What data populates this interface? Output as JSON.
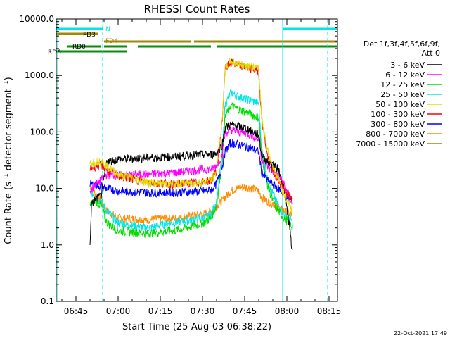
{
  "chart_data": {
    "type": "line",
    "title": "RHESSI Count Rates",
    "xlabel": "Start Time (25-Aug-03 06:38:22)",
    "ylabel": "Count Rate (s⁻¹ detector segment⁻¹)",
    "footer": "22-Oct-2021 17:49",
    "y_scale": "log",
    "ylim": [
      0.1,
      10000
    ],
    "xlim": [
      "06:38",
      "08:18"
    ],
    "x_ticks": [
      "06:45",
      "07:00",
      "07:15",
      "07:30",
      "07:45",
      "08:00",
      "08:15"
    ],
    "y_ticks": [
      "0.1",
      "1.0",
      "10.0",
      "100.0",
      "1000.0",
      "10000.0"
    ],
    "legend": {
      "title_lines": [
        "Det 1f,3f,4f,5f,6f,9f,",
        "Att 0"
      ],
      "placement": "right"
    },
    "vlines": [
      {
        "x": "06:38:30",
        "color": "#00e6e6"
      },
      {
        "x": "06:54:30",
        "color": "#00e6e6",
        "dashed": true
      },
      {
        "x": "07:58:30",
        "color": "#00e6e6"
      },
      {
        "x": "08:14:30",
        "color": "#00e6e6",
        "dashed": true
      }
    ],
    "flag_bars": [
      {
        "label": "N",
        "color": "#00e6e6",
        "segments": [
          [
            "06:38",
            "06:54:30"
          ],
          [
            "07:58:30",
            "08:18"
          ]
        ]
      },
      {
        "label": "FD3",
        "color": "#a08a00",
        "segments": [
          [
            "06:38",
            "06:53"
          ]
        ]
      },
      {
        "label": "FD4",
        "color": "#a08a00",
        "segments": [
          [
            "06:55",
            "07:26"
          ],
          [
            "07:27",
            "08:18"
          ]
        ]
      },
      {
        "label": "RD0",
        "color": "#0a8c0a",
        "segments": [
          [
            "06:42",
            "06:54"
          ],
          [
            "06:55",
            "07:03"
          ],
          [
            "07:07",
            "07:33"
          ],
          [
            "07:35",
            "07:58"
          ],
          [
            "07:58",
            "08:18"
          ]
        ]
      },
      {
        "label": "RD6",
        "color": "#0a8c0a",
        "segments": [
          [
            "06:38",
            "07:03"
          ]
        ]
      }
    ],
    "series": [
      {
        "name": "3 - 6 keV",
        "color": "#000000",
        "x": [
          "06:50",
          "06:50:30",
          "06:52",
          "06:54",
          "06:56",
          "07:00",
          "07:10",
          "07:20",
          "07:30",
          "07:33",
          "07:35",
          "07:37",
          "07:38",
          "07:40",
          "07:43",
          "07:46",
          "07:48",
          "07:50",
          "07:51",
          "07:53",
          "07:55",
          "07:57",
          "07:59",
          "08:01",
          "08:02"
        ],
        "y": [
          1.0,
          5.0,
          6.5,
          7.5,
          30,
          33,
          35,
          37,
          40,
          40,
          42,
          60,
          120,
          135,
          125,
          115,
          100,
          90,
          40,
          30,
          27,
          22,
          10,
          2.0,
          0.7
        ]
      },
      {
        "name": "6 - 12 keV",
        "color": "#ff00ff",
        "x": [
          "06:50",
          "06:50:30",
          "06:52",
          "06:54",
          "06:56",
          "07:00",
          "07:10",
          "07:20",
          "07:30",
          "07:33",
          "07:35",
          "07:37",
          "07:38",
          "07:40",
          "07:43",
          "07:46",
          "07:48",
          "07:50",
          "07:51",
          "07:53",
          "07:55",
          "07:57",
          "07:59",
          "08:01",
          "08:02"
        ],
        "y": [
          9,
          9.5,
          12,
          14,
          18,
          17,
          18,
          19,
          22,
          22,
          25,
          40,
          95,
          110,
          100,
          95,
          85,
          75,
          35,
          25,
          20,
          17,
          12,
          7,
          5
        ]
      },
      {
        "name": "12 - 25 keV",
        "color": "#00dd00",
        "x": [
          "06:50",
          "06:50:30",
          "06:52",
          "06:54",
          "06:56",
          "07:00",
          "07:10",
          "07:20",
          "07:30",
          "07:33",
          "07:35",
          "07:37",
          "07:38",
          "07:40",
          "07:43",
          "07:46",
          "07:48",
          "07:50",
          "07:51",
          "07:53",
          "07:55",
          "07:57",
          "07:59",
          "08:01",
          "08:02"
        ],
        "y": [
          5,
          5.5,
          6,
          5,
          2.5,
          1.8,
          1.6,
          1.8,
          2.4,
          3.0,
          5,
          30,
          180,
          300,
          250,
          220,
          200,
          180,
          40,
          12,
          6,
          4,
          3,
          2.5,
          2.0
        ]
      },
      {
        "name": "25 - 50 keV",
        "color": "#00e6e6",
        "x": [
          "06:50",
          "06:50:30",
          "06:52",
          "06:54",
          "06:56",
          "07:00",
          "07:10",
          "07:20",
          "07:30",
          "07:33",
          "07:35",
          "07:37",
          "07:38",
          "07:40",
          "07:43",
          "07:46",
          "07:48",
          "07:50",
          "07:51",
          "07:53",
          "07:55",
          "07:57",
          "07:59",
          "08:01",
          "08:02"
        ],
        "y": [
          8,
          8.5,
          7,
          6,
          4,
          2.5,
          2.0,
          2.5,
          3.0,
          3.5,
          6,
          40,
          300,
          500,
          420,
          380,
          350,
          320,
          50,
          15,
          8,
          5,
          3.5,
          3.0,
          2.5
        ]
      },
      {
        "name": "50 - 100 keV",
        "color": "#dddd00",
        "x": [
          "06:50",
          "06:50:30",
          "06:52",
          "06:54",
          "06:56",
          "07:00",
          "07:10",
          "07:20",
          "07:30",
          "07:33",
          "07:35",
          "07:37",
          "07:38",
          "07:40",
          "07:43",
          "07:46",
          "07:48",
          "07:50",
          "07:51",
          "07:53",
          "07:55",
          "07:57",
          "07:59",
          "08:01",
          "08:02"
        ],
        "y": [
          28,
          29,
          30,
          32,
          25,
          18,
          13,
          12,
          13,
          14,
          20,
          150,
          1300,
          1800,
          1600,
          1500,
          1400,
          1300,
          200,
          50,
          25,
          15,
          8,
          5,
          4
        ]
      },
      {
        "name": "100 - 300 keV",
        "color": "#ff0000",
        "x": [
          "06:50",
          "06:50:30",
          "06:52",
          "06:54",
          "06:56",
          "07:00",
          "07:10",
          "07:20",
          "07:30",
          "07:33",
          "07:35",
          "07:37",
          "07:38",
          "07:40",
          "07:43",
          "07:46",
          "07:48",
          "07:50",
          "07:51",
          "07:53",
          "07:55",
          "07:57",
          "07:59",
          "08:01",
          "08:02"
        ],
        "y": [
          22,
          23,
          25,
          26,
          22,
          17,
          13,
          12,
          13,
          14,
          20,
          150,
          1300,
          1700,
          1500,
          1400,
          1300,
          1200,
          180,
          40,
          20,
          14,
          10,
          7,
          6
        ]
      },
      {
        "name": "300 - 800 keV",
        "color": "#0000ff",
        "x": [
          "06:50",
          "06:50:30",
          "06:52",
          "06:54",
          "06:56",
          "07:00",
          "07:10",
          "07:20",
          "07:30",
          "07:33",
          "07:35",
          "07:37",
          "07:38",
          "07:40",
          "07:43",
          "07:46",
          "07:48",
          "07:50",
          "07:51",
          "07:53",
          "07:55",
          "07:57",
          "07:59",
          "08:01",
          "08:02"
        ],
        "y": [
          12,
          12,
          11.5,
          11,
          10,
          9,
          8.5,
          8.5,
          9,
          9.5,
          12,
          25,
          45,
          65,
          60,
          55,
          50,
          45,
          20,
          14,
          12,
          10,
          8,
          6.5,
          6
        ]
      },
      {
        "name": "800 - 7000 keV",
        "color": "#ff8c00",
        "x": [
          "06:50",
          "06:50:30",
          "06:52",
          "06:54",
          "06:56",
          "07:00",
          "07:10",
          "07:20",
          "07:30",
          "07:33",
          "07:35",
          "07:37",
          "07:38",
          "07:40",
          "07:43",
          "07:46",
          "07:48",
          "07:50",
          "07:51",
          "07:53",
          "07:55",
          "07:57",
          "07:59",
          "08:01",
          "08:02"
        ],
        "y": [
          10,
          10,
          8,
          6,
          4,
          3,
          2.8,
          3,
          3.5,
          4,
          5,
          6,
          7,
          9,
          10.5,
          10.5,
          10,
          9,
          7,
          6,
          5.5,
          4.5,
          4,
          3.5,
          3.5
        ]
      },
      {
        "name": "7000 - 15000 keV",
        "color": "#a08a00",
        "x": [],
        "y": []
      }
    ]
  }
}
